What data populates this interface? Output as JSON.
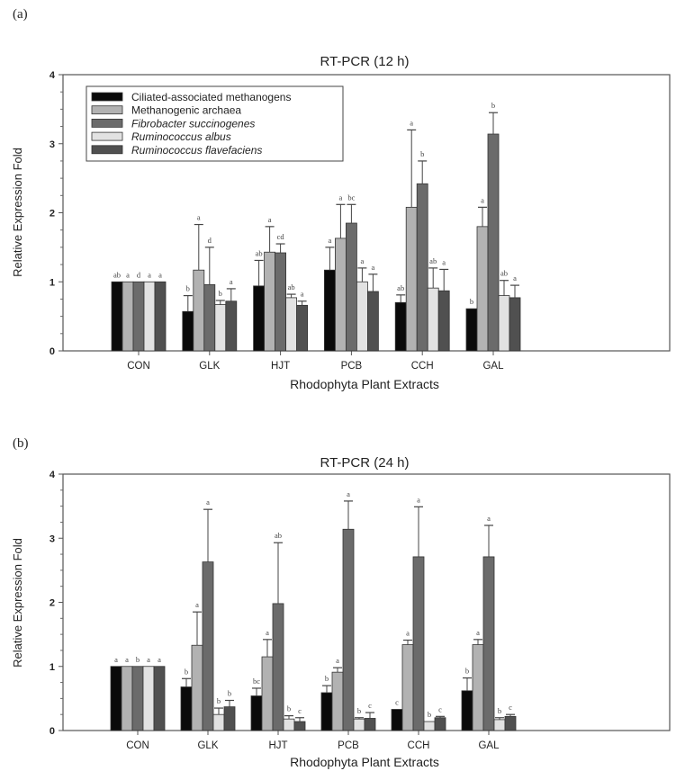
{
  "chart_data": [
    {
      "panel_label": "(a)",
      "type": "bar",
      "title": "RT-PCR (12 h)",
      "xlabel": "Rhodophyta Plant Extracts",
      "ylabel": "Relative Expression Fold",
      "ylim": [
        0,
        4
      ],
      "yticks": [
        "0",
        "1",
        "2",
        "3",
        "4"
      ],
      "legend_position": "top-left",
      "categories": [
        "CON",
        "GLK",
        "HJT",
        "PCB",
        "CCH",
        "GAL"
      ],
      "series": [
        {
          "name": "Ciliated-associated methanogens",
          "italic": false,
          "color": "#0a0a0a",
          "values": [
            1,
            0.57,
            0.94,
            1.17,
            0.7,
            0.61
          ],
          "errors": [
            0,
            0.23,
            0.37,
            0.33,
            0.11,
            0
          ],
          "letters": [
            "ab",
            "b",
            "ab",
            "a",
            "ab",
            "b"
          ]
        },
        {
          "name": "Methanogenic archaea",
          "italic": false,
          "color": "#b2b2b2",
          "values": [
            1,
            1.17,
            1.43,
            1.63,
            2.08,
            1.8
          ],
          "errors": [
            0,
            0.66,
            0.37,
            0.49,
            1.12,
            0.28
          ],
          "letters": [
            "a",
            "a",
            "a",
            "a",
            "a",
            "a"
          ]
        },
        {
          "name": "Fibrobacter succinogenes",
          "italic": true,
          "color": "#6b6b6b",
          "values": [
            1,
            0.96,
            1.42,
            1.85,
            2.42,
            3.14
          ],
          "errors": [
            0,
            0.54,
            0.13,
            0.27,
            0.33,
            0.31
          ],
          "letters": [
            "d",
            "d",
            "cd",
            "bc",
            "b",
            "b"
          ]
        },
        {
          "name": "Ruminococcus albus",
          "italic": true,
          "color": "#e2e2e2",
          "values": [
            1,
            0.67,
            0.77,
            1.0,
            0.91,
            0.8
          ],
          "errors": [
            0,
            0.06,
            0.05,
            0.2,
            0.29,
            0.22
          ],
          "letters": [
            "a",
            "b",
            "ab",
            "a",
            "ab",
            "ab"
          ]
        },
        {
          "name": "Ruminococcus flavefaciens",
          "italic": true,
          "color": "#505050",
          "values": [
            1,
            0.72,
            0.66,
            0.86,
            0.87,
            0.77
          ],
          "errors": [
            0,
            0.18,
            0.06,
            0.25,
            0.31,
            0.18
          ],
          "letters": [
            "a",
            "a",
            "a",
            "a",
            "a",
            "a"
          ]
        }
      ]
    },
    {
      "panel_label": "(b)",
      "type": "bar",
      "title": "RT-PCR (24 h)",
      "xlabel": "Rhodophyta Plant Extracts",
      "ylabel": "Relative Expression Fold",
      "ylim": [
        0,
        4
      ],
      "yticks": [
        "0",
        "1",
        "2",
        "3",
        "4"
      ],
      "categories": [
        "CON",
        "GLK",
        "HJT",
        "PCB",
        "CCH",
        "GAL"
      ],
      "series": [
        {
          "color": "#0a0a0a",
          "values": [
            1,
            0.68,
            0.54,
            0.59,
            0.33,
            0.62
          ],
          "errors": [
            0,
            0.13,
            0.12,
            0.11,
            0,
            0.2
          ],
          "letters": [
            "a",
            "b",
            "bc",
            "b",
            "c",
            "b"
          ]
        },
        {
          "color": "#b2b2b2",
          "values": [
            1,
            1.33,
            1.15,
            0.91,
            1.34,
            1.34
          ],
          "errors": [
            0,
            0.52,
            0.27,
            0.07,
            0.07,
            0.08
          ],
          "letters": [
            "a",
            "a",
            "a",
            "a",
            "a",
            "a"
          ]
        },
        {
          "color": "#6b6b6b",
          "values": [
            1,
            2.63,
            1.98,
            3.14,
            2.71,
            2.71
          ],
          "errors": [
            0,
            0.82,
            0.95,
            0.44,
            0.78,
            0.49
          ],
          "letters": [
            "b",
            "a",
            "ab",
            "a",
            "a",
            "a"
          ]
        },
        {
          "color": "#e2e2e2",
          "values": [
            1,
            0.25,
            0.18,
            0.18,
            0.14,
            0.17
          ],
          "errors": [
            0,
            0.1,
            0.05,
            0.02,
            0,
            0.03
          ],
          "letters": [
            "a",
            "b",
            "b",
            "b",
            "b",
            "b"
          ]
        },
        {
          "color": "#505050",
          "values": [
            1,
            0.37,
            0.14,
            0.19,
            0.2,
            0.22
          ],
          "errors": [
            0,
            0.1,
            0.06,
            0.09,
            0.02,
            0.03
          ],
          "letters": [
            "a",
            "b",
            "c",
            "c",
            "c",
            "c"
          ]
        }
      ]
    }
  ]
}
